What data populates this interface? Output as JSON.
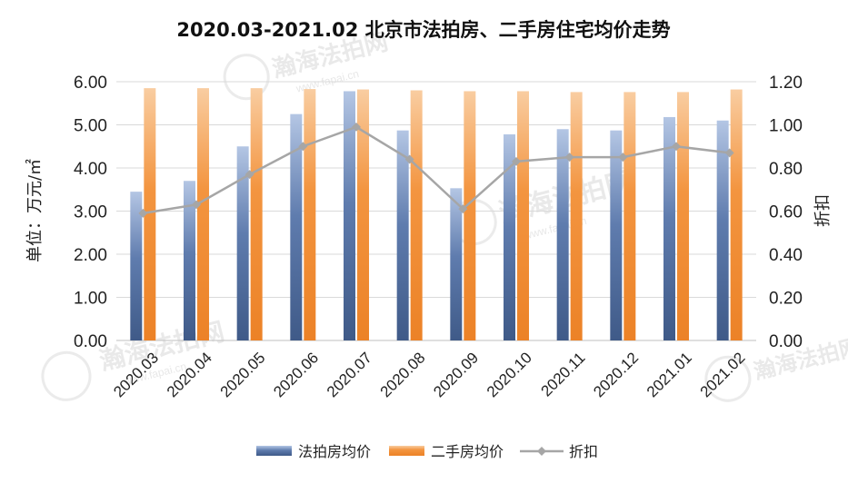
{
  "chart_data": {
    "type": "bar",
    "title": "2020.03-2021.02 北京市法拍房、二手房住宅均价走势",
    "ylabel": "单位：万元/㎡",
    "y2label": "折扣",
    "ylim": [
      0,
      6
    ],
    "y2lim": [
      0,
      1.2
    ],
    "yticks": [
      "0.00",
      "1.00",
      "2.00",
      "3.00",
      "4.00",
      "5.00",
      "6.00"
    ],
    "y2ticks": [
      "0.00",
      "0.20",
      "0.40",
      "0.60",
      "0.80",
      "1.00",
      "1.20"
    ],
    "grid": true,
    "legend_position": "bottom",
    "categories": [
      "2020.03",
      "2020.04",
      "2020.05",
      "2020.06",
      "2020.07",
      "2020.08",
      "2020.09",
      "2020.10",
      "2020.11",
      "2020.12",
      "2021.01",
      "2021.02"
    ],
    "series": [
      {
        "name": "法拍房均价",
        "kind": "bar",
        "axis": "left",
        "color": "#4a6592",
        "values": [
          3.45,
          3.7,
          4.5,
          5.25,
          5.78,
          4.87,
          3.53,
          4.78,
          4.9,
          4.87,
          5.18,
          5.1
        ]
      },
      {
        "name": "二手房均价",
        "kind": "bar",
        "axis": "left",
        "color": "#f08a2e",
        "values": [
          5.85,
          5.85,
          5.85,
          5.83,
          5.82,
          5.8,
          5.78,
          5.78,
          5.76,
          5.76,
          5.76,
          5.82
        ]
      },
      {
        "name": "折扣",
        "kind": "line",
        "axis": "right",
        "color": "#a6a6a6",
        "values": [
          0.59,
          0.63,
          0.77,
          0.9,
          0.99,
          0.84,
          0.61,
          0.83,
          0.85,
          0.85,
          0.9,
          0.87
        ]
      }
    ]
  },
  "watermark": {
    "brand": "瀚海法拍网",
    "site": "www.fapai.cn"
  }
}
